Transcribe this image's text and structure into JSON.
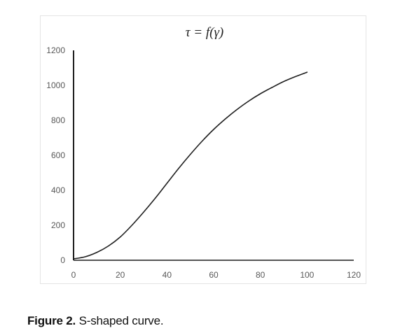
{
  "caption": {
    "label": "Figure 2.",
    "text": "S-shaped curve."
  },
  "colors": {
    "curve": "#1f1f1f",
    "axis": "#1f1f1f",
    "tick_text": "#595959",
    "frame_border": "#e4e4e4"
  },
  "chart_data": {
    "type": "line",
    "title": "τ = f(γ)",
    "xlabel": "",
    "ylabel": "",
    "xlim": [
      0,
      120
    ],
    "ylim": [
      0,
      1200
    ],
    "x_ticks": [
      "0",
      "20",
      "40",
      "60",
      "80",
      "100",
      "120"
    ],
    "y_ticks": [
      "0",
      "200",
      "400",
      "600",
      "800",
      "1000",
      "1200"
    ],
    "grid": false,
    "legend": "none",
    "series": [
      {
        "x": [
          0,
          5,
          10,
          15,
          20,
          25,
          30,
          35,
          40,
          45,
          50,
          55,
          60,
          65,
          70,
          75,
          80,
          85,
          90,
          95,
          100
        ],
        "y": [
          8,
          20,
          45,
          82,
          133,
          200,
          275,
          355,
          440,
          525,
          605,
          680,
          748,
          808,
          862,
          910,
          952,
          988,
          1022,
          1050,
          1075
        ]
      }
    ]
  }
}
